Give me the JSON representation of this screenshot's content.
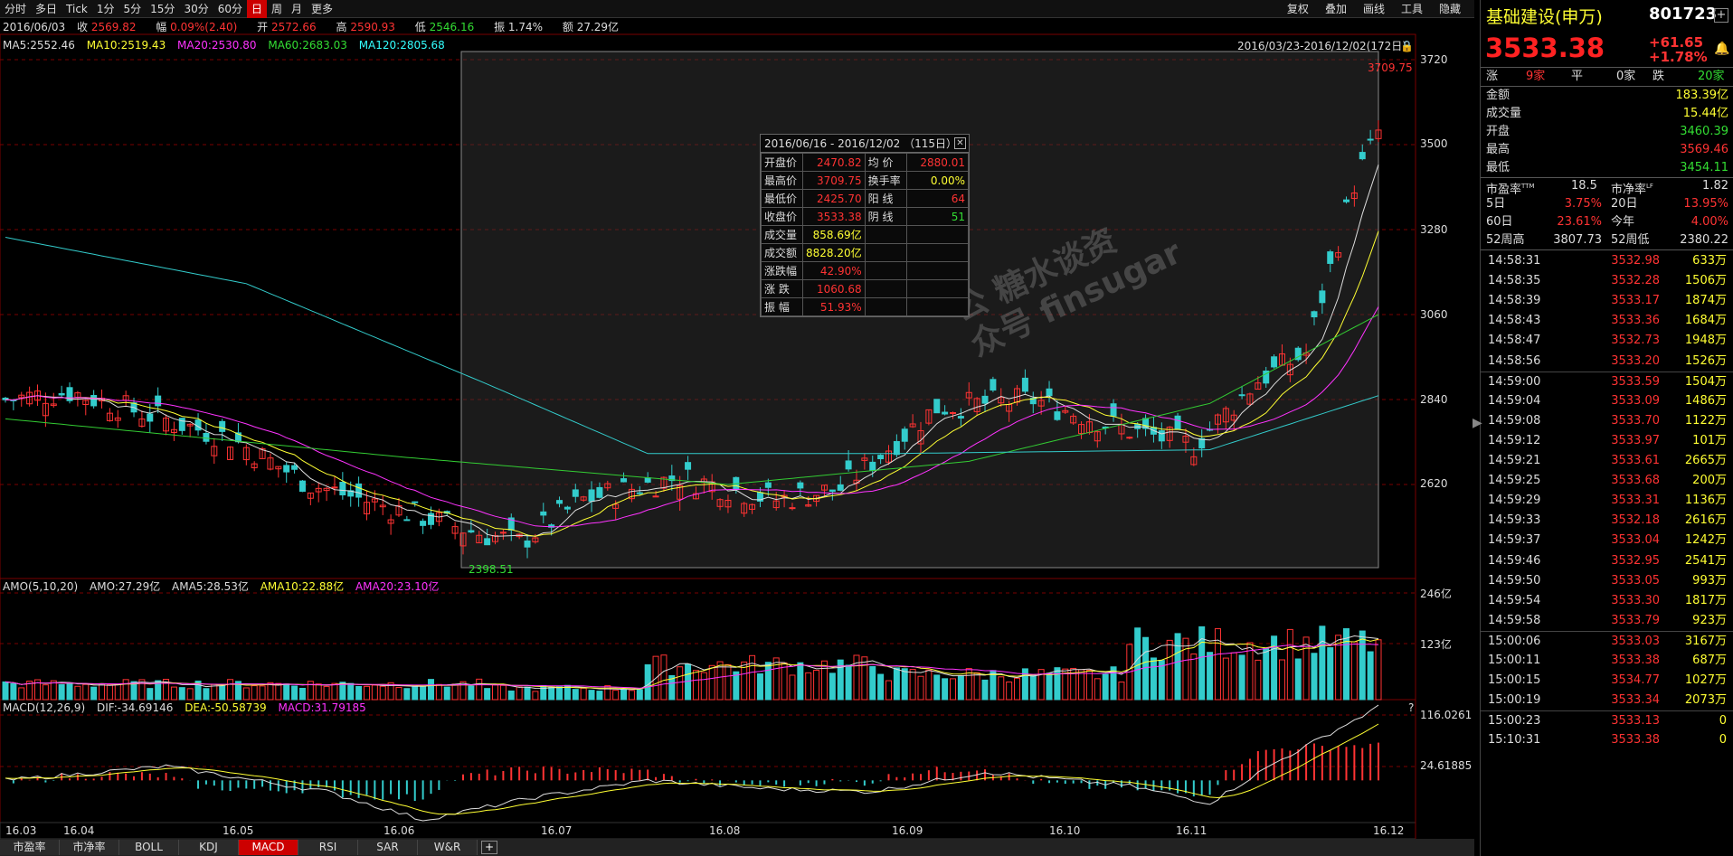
{
  "toolbar": {
    "periods": [
      "分时",
      "多日",
      "Tick",
      "1分",
      "5分",
      "15分",
      "30分",
      "60分",
      "日",
      "周",
      "月",
      "更多"
    ],
    "active_period": "日",
    "right": [
      "复权",
      "叠加",
      "画线",
      "工具",
      "隐藏"
    ]
  },
  "info_row": {
    "date": "2016/06/03",
    "close_label": "收",
    "close": "2569.82",
    "change_label": "幅",
    "change": "0.09%(2.40)",
    "open_label": "开",
    "open": "2572.66",
    "high_label": "高",
    "high": "2590.93",
    "low_label": "低",
    "low": "2546.16",
    "amp_label": "振",
    "amp": "1.74%",
    "amt_label": "额",
    "amt": "27.29亿"
  },
  "ma_row": {
    "ma5": "MA5:2552.46",
    "ma10": "MA10:2519.43",
    "ma20": "MA20:2530.80",
    "ma60": "MA60:2683.03",
    "ma120": "MA120:2805.68"
  },
  "range_label": "2016/03/23-2016/12/02(172日)",
  "price_axis": [
    "3720",
    "3500",
    "3280",
    "3060",
    "2840",
    "2620"
  ],
  "max_marker": "3709.75",
  "min_marker": "2398.51",
  "stat_box": {
    "title": "2016/06/16 - 2016/12/02 （115日）",
    "rows": [
      {
        "k": "开盘价",
        "v": "2470.82",
        "k2": "均 价",
        "v2": "2880.01",
        "c2": "red"
      },
      {
        "k": "最高价",
        "v": "3709.75",
        "k2": "换手率",
        "v2": "0.00%",
        "c2": "yellow"
      },
      {
        "k": "最低价",
        "v": "2425.70",
        "k2": "阳 线",
        "v2": "64",
        "c2": "red"
      },
      {
        "k": "收盘价",
        "v": "3533.38",
        "k2": "阴 线",
        "v2": "51",
        "c2": "green"
      },
      {
        "k": "成交量",
        "v": "858.69亿",
        "k2": "",
        "v2": "",
        "c2": "white",
        "vc": "yellow"
      },
      {
        "k": "成交额",
        "v": "8828.20亿",
        "k2": "",
        "v2": "",
        "c2": "white",
        "vc": "yellow"
      },
      {
        "k": "涨跌幅",
        "v": "42.90%",
        "k2": "",
        "v2": "",
        "c2": "white"
      },
      {
        "k": "涨 跌",
        "v": "1060.68",
        "k2": "",
        "v2": "",
        "c2": "white"
      },
      {
        "k": "振 幅",
        "v": "51.93%",
        "k2": "",
        "v2": "",
        "c2": "white"
      }
    ]
  },
  "watermark_lines": [
    "公 糖水谈资",
    "众号 finsugar"
  ],
  "amo_row": {
    "label": "AMO(5,10,20)",
    "amo": "AMO:27.29亿",
    "ama5": "AMA5:28.53亿",
    "ama10": "AMA10:22.88亿",
    "ama20": "AMA20:23.10亿"
  },
  "amo_axis": [
    "246亿",
    "123亿"
  ],
  "macd_row": {
    "label": "MACD(12,26,9)",
    "dif": "DIF:-34.69146",
    "dea": "DEA:-50.58739",
    "macd": "MACD:31.79185"
  },
  "macd_axis": [
    "116.0261",
    "24.61885"
  ],
  "macd_q": "?",
  "dates": [
    "16.03",
    "16.04",
    "16.05",
    "16.06",
    "16.07",
    "16.08",
    "16.09",
    "16.10",
    "16.11",
    "16.12"
  ],
  "tabs": [
    "市盈率",
    "市净率",
    "BOLL",
    "KDJ",
    "MACD",
    "RSI",
    "SAR",
    "W&R"
  ],
  "active_tab": "MACD",
  "quote": {
    "name": "基础建设(申万)",
    "code": "801723",
    "price": "3533.38",
    "chg": "+61.65",
    "pct": "+1.78%",
    "up_label": "涨",
    "up": "9家",
    "flat_label": "平",
    "flat": "0家",
    "down_label": "跌",
    "down": "20家",
    "kv": [
      {
        "k": "金额",
        "v": "183.39亿",
        "c": "yellow"
      },
      {
        "k": "成交量",
        "v": "15.44亿",
        "c": "yellow"
      },
      {
        "k": "开盘",
        "v": "3460.39",
        "c": "green"
      },
      {
        "k": "最高",
        "v": "3569.46",
        "c": "red"
      },
      {
        "k": "最低",
        "v": "3454.11",
        "c": "green"
      }
    ],
    "pe_label": "市盈率",
    "pe_sup": "TTM",
    "pe": "18.5",
    "pb_label": "市净率",
    "pb_sup": "LF",
    "pb": "1.82",
    "perf": [
      {
        "k1": "5日",
        "v1": "3.75%",
        "c1": "red",
        "k2": "20日",
        "v2": "13.95%",
        "c2": "red"
      },
      {
        "k1": "60日",
        "v1": "23.61%",
        "c1": "red",
        "k2": "今年",
        "v2": "4.00%",
        "c2": "red"
      },
      {
        "k1": "52周高",
        "v1": "3807.73",
        "c1": "white",
        "k2": "52周低",
        "v2": "2380.22",
        "c2": "white"
      }
    ]
  },
  "ticks": [
    {
      "t": "14:58:31",
      "p": "3532.98",
      "v": "633万"
    },
    {
      "t": "14:58:35",
      "p": "3532.28",
      "v": "1506万"
    },
    {
      "t": "14:58:39",
      "p": "3533.17",
      "v": "1874万"
    },
    {
      "t": "14:58:43",
      "p": "3533.36",
      "v": "1684万"
    },
    {
      "t": "14:58:47",
      "p": "3532.73",
      "v": "1948万"
    },
    {
      "t": "14:58:56",
      "p": "3533.20",
      "v": "1526万"
    },
    {
      "t": "14:59:00",
      "p": "3533.59",
      "v": "1504万"
    },
    {
      "t": "14:59:04",
      "p": "3533.09",
      "v": "1486万"
    },
    {
      "t": "14:59:08",
      "p": "3533.70",
      "v": "1122万"
    },
    {
      "t": "14:59:12",
      "p": "3533.97",
      "v": "101万"
    },
    {
      "t": "14:59:21",
      "p": "3533.61",
      "v": "2665万"
    },
    {
      "t": "14:59:25",
      "p": "3533.68",
      "v": "200万"
    },
    {
      "t": "14:59:29",
      "p": "3533.31",
      "v": "1136万"
    },
    {
      "t": "14:59:33",
      "p": "3532.18",
      "v": "2616万"
    },
    {
      "t": "14:59:37",
      "p": "3533.04",
      "v": "1242万"
    },
    {
      "t": "14:59:46",
      "p": "3532.95",
      "v": "2541万"
    },
    {
      "t": "14:59:50",
      "p": "3533.05",
      "v": "993万"
    },
    {
      "t": "14:59:54",
      "p": "3533.30",
      "v": "1817万"
    },
    {
      "t": "14:59:58",
      "p": "3533.79",
      "v": "923万"
    },
    {
      "t": "15:00:06",
      "p": "3533.03",
      "v": "3167万"
    },
    {
      "t": "15:00:11",
      "p": "3533.38",
      "v": "687万"
    },
    {
      "t": "15:00:15",
      "p": "3534.77",
      "v": "1027万"
    },
    {
      "t": "15:00:19",
      "p": "3533.34",
      "v": "2073万"
    },
    {
      "t": "15:00:23",
      "p": "3533.13",
      "v": "0"
    },
    {
      "t": "15:10:31",
      "p": "3533.38",
      "v": "0"
    }
  ]
}
